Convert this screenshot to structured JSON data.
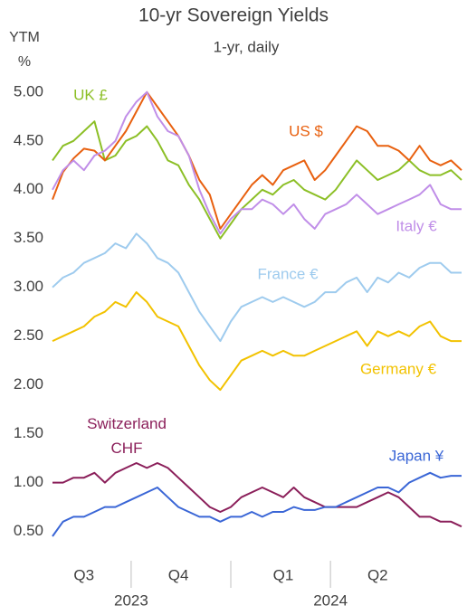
{
  "chart_data": {
    "type": "line",
    "title": "10-yr Sovereign Yields",
    "subtitle": "1-yr, daily",
    "y_label": [
      "YTM",
      "%"
    ],
    "categories": [
      null,
      null,
      null,
      "Q3",
      null,
      null,
      null,
      null,
      null,
      null,
      null,
      null,
      "Q4",
      null,
      null,
      null,
      null,
      null,
      null,
      null,
      null,
      null,
      "Q1",
      null,
      null,
      null,
      null,
      null,
      null,
      null,
      null,
      "Q2",
      null,
      null,
      null,
      null,
      null,
      null,
      null,
      null
    ],
    "years": [
      "2023",
      "2024"
    ],
    "ylim": [
      0.2,
      5.1
    ],
    "yticks": [
      {
        "value": 0.5,
        "label": "0.50"
      },
      {
        "value": 1,
        "label": "1.00"
      },
      {
        "value": 1.5,
        "label": "1.50"
      },
      {
        "value": 2,
        "label": "2.00"
      },
      {
        "value": 2.5,
        "label": "2.50"
      },
      {
        "value": 3,
        "label": "3.00"
      },
      {
        "value": 3.5,
        "label": "3.50"
      },
      {
        "value": 4,
        "label": "4.00"
      },
      {
        "value": 4.5,
        "label": "4.50"
      },
      {
        "value": 5,
        "label": "5.00"
      }
    ],
    "series": [
      {
        "name": "UK £",
        "color": "#8cbf26",
        "values": [
          4.3,
          4.45,
          4.5,
          4.6,
          4.7,
          4.3,
          4.35,
          4.5,
          4.55,
          4.65,
          4.5,
          4.3,
          4.25,
          4.05,
          3.9,
          3.7,
          3.5,
          3.65,
          3.8,
          3.9,
          4.0,
          3.95,
          4.05,
          4.1,
          4.0,
          3.95,
          3.9,
          4.0,
          4.15,
          4.3,
          4.2,
          4.1,
          4.15,
          4.2,
          4.3,
          4.2,
          4.15,
          4.15,
          4.2,
          4.1
        ]
      },
      {
        "name": "US $",
        "color": "#e8600f",
        "values": [
          3.9,
          4.18,
          4.32,
          4.42,
          4.4,
          4.3,
          4.45,
          4.6,
          4.8,
          5.0,
          4.85,
          4.7,
          4.55,
          4.35,
          4.1,
          3.95,
          3.6,
          3.75,
          3.9,
          4.05,
          4.15,
          4.05,
          4.2,
          4.25,
          4.3,
          4.1,
          4.2,
          4.35,
          4.5,
          4.65,
          4.6,
          4.45,
          4.45,
          4.4,
          4.3,
          4.45,
          4.3,
          4.25,
          4.3,
          4.2
        ]
      },
      {
        "name": "Italy €",
        "color": "#c08ee8",
        "values": [
          4.0,
          4.2,
          4.3,
          4.2,
          4.35,
          4.4,
          4.5,
          4.75,
          4.9,
          5.0,
          4.75,
          4.6,
          4.55,
          4.35,
          4.0,
          3.75,
          3.55,
          3.7,
          3.8,
          3.8,
          3.9,
          3.85,
          3.75,
          3.85,
          3.7,
          3.6,
          3.75,
          3.8,
          3.85,
          3.95,
          3.85,
          3.75,
          3.8,
          3.85,
          3.9,
          3.95,
          4.05,
          3.85,
          3.8,
          3.8
        ]
      },
      {
        "name": "France €",
        "color": "#9ecbee",
        "values": [
          3.0,
          3.1,
          3.15,
          3.25,
          3.3,
          3.35,
          3.45,
          3.4,
          3.55,
          3.45,
          3.3,
          3.25,
          3.15,
          2.95,
          2.75,
          2.6,
          2.45,
          2.65,
          2.8,
          2.85,
          2.9,
          2.85,
          2.9,
          2.85,
          2.8,
          2.85,
          2.95,
          2.95,
          3.05,
          3.1,
          2.95,
          3.1,
          3.05,
          3.15,
          3.1,
          3.2,
          3.25,
          3.25,
          3.15,
          3.15
        ]
      },
      {
        "name": "Germany €",
        "color": "#f2c200",
        "values": [
          2.45,
          2.5,
          2.55,
          2.6,
          2.7,
          2.75,
          2.85,
          2.8,
          2.95,
          2.85,
          2.7,
          2.65,
          2.6,
          2.4,
          2.2,
          2.05,
          1.95,
          2.1,
          2.25,
          2.3,
          2.35,
          2.3,
          2.35,
          2.3,
          2.3,
          2.35,
          2.4,
          2.45,
          2.5,
          2.55,
          2.4,
          2.55,
          2.5,
          2.55,
          2.5,
          2.6,
          2.65,
          2.5,
          2.45,
          2.45
        ]
      },
      {
        "name": "Switzerland CHF",
        "color": "#8b1f5a",
        "values": [
          1.0,
          1.0,
          1.05,
          1.05,
          1.1,
          1.0,
          1.1,
          1.15,
          1.2,
          1.15,
          1.2,
          1.15,
          1.05,
          0.95,
          0.85,
          0.75,
          0.7,
          0.75,
          0.85,
          0.9,
          0.95,
          0.9,
          0.85,
          0.95,
          0.85,
          0.8,
          0.75,
          0.75,
          0.75,
          0.75,
          0.8,
          0.85,
          0.9,
          0.85,
          0.75,
          0.65,
          0.65,
          0.6,
          0.6,
          0.55
        ]
      },
      {
        "name": "Japan ¥",
        "color": "#3a66d6",
        "values": [
          0.45,
          0.6,
          0.65,
          0.65,
          0.7,
          0.75,
          0.75,
          0.8,
          0.85,
          0.9,
          0.95,
          0.85,
          0.75,
          0.7,
          0.65,
          0.65,
          0.6,
          0.65,
          0.65,
          0.7,
          0.65,
          0.7,
          0.7,
          0.75,
          0.72,
          0.72,
          0.75,
          0.75,
          0.8,
          0.85,
          0.9,
          0.95,
          0.95,
          0.9,
          1.0,
          1.05,
          1.1,
          1.05,
          1.07,
          1.07
        ]
      }
    ]
  }
}
